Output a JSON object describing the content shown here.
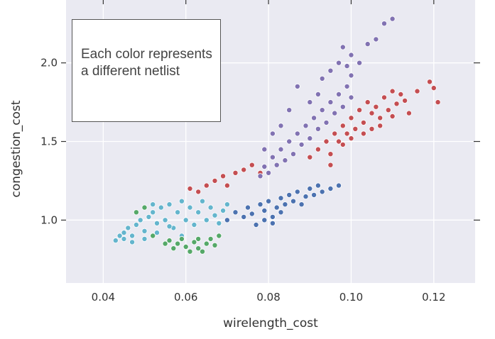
{
  "chart_data": {
    "type": "scatter",
    "title": "",
    "xlabel": "wirelength_cost",
    "ylabel": "congestion_cost",
    "xlim": [
      0.031,
      0.13
    ],
    "ylim": [
      0.6,
      2.4
    ],
    "xticks": [
      0.04,
      0.06,
      0.08,
      0.1,
      0.12
    ],
    "xtick_labels": [
      "0.04",
      "0.06",
      "0.08",
      "0.10",
      "0.12"
    ],
    "yticks": [
      1.0,
      1.5,
      2.0
    ],
    "ytick_labels": [
      "1.0",
      "1.5",
      "2.0"
    ],
    "grid": true,
    "background": "#eaeaf2",
    "annotation": "Each color represents a different netlist",
    "series": [
      {
        "color": "#64b5cd",
        "points": [
          [
            0.043,
            0.87
          ],
          [
            0.044,
            0.9
          ],
          [
            0.045,
            0.92
          ],
          [
            0.046,
            0.95
          ],
          [
            0.047,
            0.9
          ],
          [
            0.048,
            0.97
          ],
          [
            0.049,
            1.0
          ],
          [
            0.05,
            0.93
          ],
          [
            0.051,
            1.02
          ],
          [
            0.052,
            1.05
          ],
          [
            0.053,
            0.98
          ],
          [
            0.054,
            1.08
          ],
          [
            0.055,
            1.0
          ],
          [
            0.056,
            1.1
          ],
          [
            0.057,
            0.95
          ],
          [
            0.058,
            1.05
          ],
          [
            0.059,
            1.12
          ],
          [
            0.06,
            1.0
          ],
          [
            0.061,
            1.08
          ],
          [
            0.062,
            0.97
          ],
          [
            0.063,
            1.05
          ],
          [
            0.064,
            1.12
          ],
          [
            0.065,
            1.0
          ],
          [
            0.066,
            1.08
          ],
          [
            0.067,
            1.03
          ],
          [
            0.068,
            0.98
          ],
          [
            0.069,
            1.06
          ],
          [
            0.07,
            1.1
          ],
          [
            0.05,
            0.88
          ],
          [
            0.053,
            0.92
          ],
          [
            0.056,
            0.96
          ],
          [
            0.059,
            0.9
          ],
          [
            0.047,
            0.86
          ],
          [
            0.045,
            0.88
          ],
          [
            0.052,
            1.1
          ]
        ]
      },
      {
        "color": "#55a868",
        "points": [
          [
            0.048,
            1.05
          ],
          [
            0.05,
            1.08
          ],
          [
            0.052,
            0.9
          ],
          [
            0.055,
            0.85
          ],
          [
            0.057,
            0.82
          ],
          [
            0.058,
            0.85
          ],
          [
            0.06,
            0.83
          ],
          [
            0.061,
            0.8
          ],
          [
            0.062,
            0.86
          ],
          [
            0.063,
            0.82
          ],
          [
            0.064,
            0.8
          ],
          [
            0.065,
            0.85
          ],
          [
            0.066,
            0.88
          ],
          [
            0.067,
            0.84
          ],
          [
            0.068,
            0.9
          ],
          [
            0.059,
            0.88
          ],
          [
            0.056,
            0.87
          ],
          [
            0.063,
            0.88
          ]
        ]
      },
      {
        "color": "#4c72b0",
        "points": [
          [
            0.07,
            1.0
          ],
          [
            0.072,
            1.05
          ],
          [
            0.074,
            1.02
          ],
          [
            0.075,
            1.08
          ],
          [
            0.076,
            1.04
          ],
          [
            0.078,
            1.1
          ],
          [
            0.079,
            1.06
          ],
          [
            0.08,
            1.12
          ],
          [
            0.081,
            1.02
          ],
          [
            0.082,
            1.08
          ],
          [
            0.083,
            1.14
          ],
          [
            0.084,
            1.1
          ],
          [
            0.085,
            1.16
          ],
          [
            0.086,
            1.12
          ],
          [
            0.087,
            1.18
          ],
          [
            0.088,
            1.1
          ],
          [
            0.089,
            1.15
          ],
          [
            0.09,
            1.2
          ],
          [
            0.091,
            1.16
          ],
          [
            0.092,
            1.22
          ],
          [
            0.093,
            1.18
          ],
          [
            0.095,
            1.2
          ],
          [
            0.097,
            1.22
          ],
          [
            0.079,
            1.0
          ],
          [
            0.083,
            1.05
          ],
          [
            0.077,
            0.97
          ],
          [
            0.081,
            0.98
          ]
        ]
      },
      {
        "color": "#c44e52",
        "points": [
          [
            0.061,
            1.2
          ],
          [
            0.063,
            1.18
          ],
          [
            0.065,
            1.22
          ],
          [
            0.067,
            1.25
          ],
          [
            0.069,
            1.28
          ],
          [
            0.07,
            1.22
          ],
          [
            0.072,
            1.3
          ],
          [
            0.074,
            1.32
          ],
          [
            0.076,
            1.35
          ],
          [
            0.078,
            1.3
          ],
          [
            0.09,
            1.4
          ],
          [
            0.092,
            1.45
          ],
          [
            0.094,
            1.5
          ],
          [
            0.095,
            1.42
          ],
          [
            0.096,
            1.55
          ],
          [
            0.097,
            1.5
          ],
          [
            0.098,
            1.6
          ],
          [
            0.099,
            1.55
          ],
          [
            0.1,
            1.65
          ],
          [
            0.101,
            1.58
          ],
          [
            0.102,
            1.7
          ],
          [
            0.103,
            1.62
          ],
          [
            0.104,
            1.75
          ],
          [
            0.105,
            1.68
          ],
          [
            0.106,
            1.72
          ],
          [
            0.107,
            1.6
          ],
          [
            0.108,
            1.78
          ],
          [
            0.109,
            1.7
          ],
          [
            0.11,
            1.82
          ],
          [
            0.111,
            1.74
          ],
          [
            0.112,
            1.8
          ],
          [
            0.113,
            1.76
          ],
          [
            0.114,
            1.68
          ],
          [
            0.116,
            1.82
          ],
          [
            0.119,
            1.88
          ],
          [
            0.12,
            1.84
          ],
          [
            0.121,
            1.75
          ],
          [
            0.095,
            1.35
          ],
          [
            0.098,
            1.48
          ],
          [
            0.1,
            1.52
          ],
          [
            0.103,
            1.55
          ],
          [
            0.105,
            1.58
          ],
          [
            0.107,
            1.65
          ],
          [
            0.11,
            1.66
          ]
        ]
      },
      {
        "color": "#8172b2",
        "points": [
          [
            0.078,
            1.28
          ],
          [
            0.079,
            1.34
          ],
          [
            0.08,
            1.3
          ],
          [
            0.081,
            1.4
          ],
          [
            0.082,
            1.35
          ],
          [
            0.083,
            1.45
          ],
          [
            0.084,
            1.38
          ],
          [
            0.085,
            1.5
          ],
          [
            0.086,
            1.42
          ],
          [
            0.087,
            1.55
          ],
          [
            0.088,
            1.48
          ],
          [
            0.089,
            1.6
          ],
          [
            0.09,
            1.52
          ],
          [
            0.091,
            1.65
          ],
          [
            0.092,
            1.58
          ],
          [
            0.093,
            1.7
          ],
          [
            0.094,
            1.62
          ],
          [
            0.095,
            1.75
          ],
          [
            0.096,
            1.68
          ],
          [
            0.097,
            1.8
          ],
          [
            0.098,
            1.72
          ],
          [
            0.099,
            1.85
          ],
          [
            0.1,
            1.78
          ],
          [
            0.093,
            1.9
          ],
          [
            0.095,
            1.95
          ],
          [
            0.097,
            2.0
          ],
          [
            0.099,
            1.98
          ],
          [
            0.1,
            2.05
          ],
          [
            0.1,
            1.92
          ],
          [
            0.102,
            2.0
          ],
          [
            0.098,
            2.1
          ],
          [
            0.104,
            2.12
          ],
          [
            0.106,
            2.15
          ],
          [
            0.108,
            2.25
          ],
          [
            0.11,
            2.28
          ],
          [
            0.087,
            1.85
          ],
          [
            0.085,
            1.7
          ],
          [
            0.083,
            1.6
          ],
          [
            0.081,
            1.55
          ],
          [
            0.079,
            1.45
          ],
          [
            0.09,
            1.75
          ],
          [
            0.092,
            1.8
          ]
        ]
      }
    ]
  }
}
